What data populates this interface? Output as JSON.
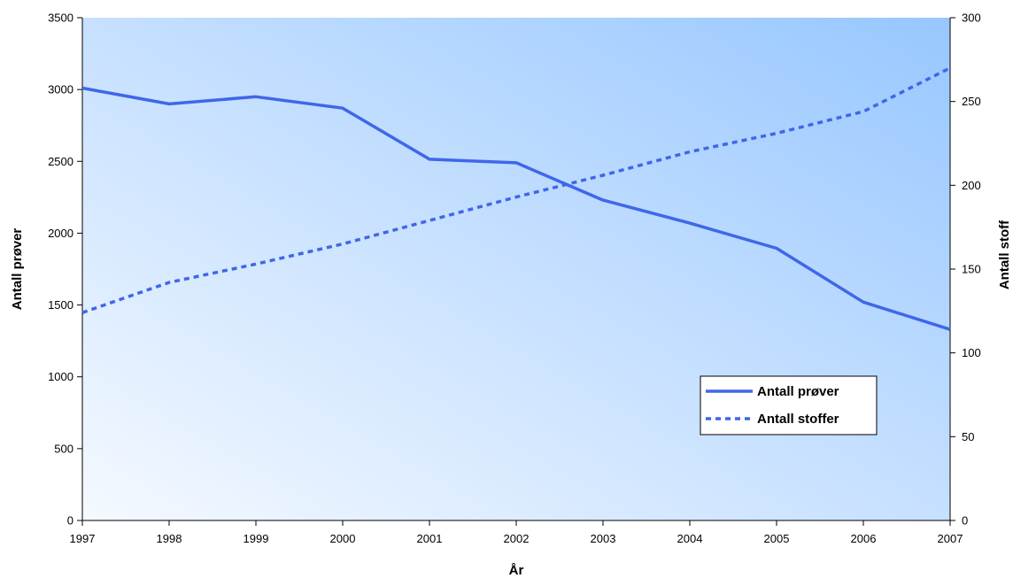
{
  "chart_data": {
    "type": "line",
    "title": "",
    "xlabel": "År",
    "ylabel_left": "Antall prøver",
    "ylabel_right": "Antall stoff",
    "x": [
      "1997",
      "1998",
      "1999",
      "2000",
      "2001",
      "2002",
      "2003",
      "2004",
      "2005",
      "2006",
      "2007"
    ],
    "ylim_left": [
      0,
      3500
    ],
    "yticks_left": [
      0,
      500,
      1000,
      1500,
      2000,
      2500,
      3000,
      3500
    ],
    "ylim_right": [
      0,
      300
    ],
    "yticks_right": [
      0,
      50,
      100,
      150,
      200,
      250,
      300
    ],
    "grid": false,
    "legend_position": "lower-right",
    "colors": {
      "line": "#3F67E8",
      "plot_bg_light": "#F5F9FF",
      "plot_bg_dark": "#97C7FF"
    },
    "series": [
      {
        "name": "Antall prøver",
        "axis": "left",
        "style": "solid",
        "values": [
          3010,
          2900,
          2950,
          2870,
          2515,
          2490,
          2230,
          2070,
          1895,
          1520,
          1330
        ]
      },
      {
        "name": "Antall stoffer",
        "axis": "right",
        "style": "dashed",
        "values": [
          124,
          142,
          153,
          165,
          179,
          193,
          206,
          220,
          231,
          244,
          270
        ]
      }
    ]
  }
}
